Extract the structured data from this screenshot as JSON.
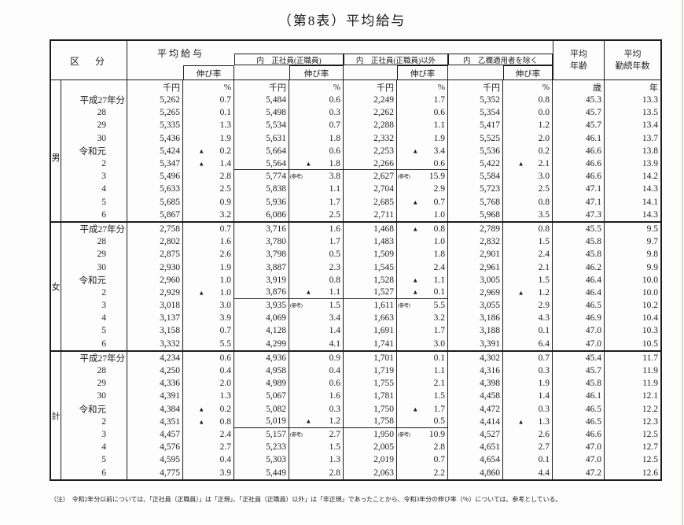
{
  "title": "（第8表）平均給与",
  "colors": {
    "ink": "#1c1c1c",
    "paper": "#fdfdfd",
    "scan_edge": "#d6d6d4"
  },
  "header": {
    "kubun": "区　分",
    "groups": [
      {
        "label": "平均給与",
        "rate": "伸び率"
      },
      {
        "label": "内　正社員(正職員)",
        "rate": "伸び率"
      },
      {
        "label": "内　正社員(正職員)以外",
        "rate": "伸び率"
      },
      {
        "label": "内　乙欄適用者を除く",
        "rate": "伸び率"
      }
    ],
    "avg_age": [
      "平均",
      "年齢"
    ],
    "avg_tenure": [
      "平均",
      "勤続年数"
    ],
    "units": [
      "千円",
      "%",
      "千円",
      "%",
      "千円",
      "%",
      "千円",
      "%",
      "歳",
      "年"
    ]
  },
  "sections": [
    {
      "group": "男",
      "name": "men",
      "rows": [
        {
          "year": "平成27年分",
          "cells": [
            "5,262",
            "0.7",
            "5,484",
            "0.6",
            "2,249",
            "1.7",
            "5,352",
            "0.8",
            "45.3",
            "13.3"
          ]
        },
        {
          "year": "28",
          "cells": [
            "5,265",
            "0.1",
            "5,498",
            "0.3",
            "2,262",
            "0.6",
            "5,354",
            "0.0",
            "45.7",
            "13.5"
          ]
        },
        {
          "year": "29",
          "cells": [
            "5,335",
            "1.3",
            "5,534",
            "0.7",
            "2,288",
            "1.1",
            "5,417",
            "1.2",
            "45.7",
            "13.4"
          ]
        },
        {
          "year": "30",
          "cells": [
            "5,436",
            "1.9",
            "5,631",
            "1.8",
            "2,332",
            "1.9",
            "5,525",
            "2.0",
            "46.1",
            "13.7"
          ]
        },
        {
          "year": "令和元",
          "cells": [
            "5,424",
            {
              "v": "0.2",
              "m": "▲"
            },
            "5,664",
            "0.6",
            "2,253",
            {
              "v": "3.4",
              "m": "▲"
            },
            "5,536",
            "0.2",
            "46.6",
            "13.8"
          ]
        },
        {
          "year": "2",
          "divider": true,
          "cells": [
            "5,347",
            {
              "v": "1.4",
              "m": "▲"
            },
            "5,564",
            {
              "v": "1.8",
              "m": "▲"
            },
            "2,266",
            "0.6",
            "5,422",
            {
              "v": "2.1",
              "m": "▲"
            },
            "46.6",
            "13.9"
          ]
        },
        {
          "year": "3",
          "cells": [
            "5,496",
            "2.8",
            "5,774",
            {
              "v": "3.8",
              "m": "(参考)"
            },
            "2,627",
            {
              "v": "15.9",
              "m": "(参考)"
            },
            "5,584",
            "3.0",
            "46.6",
            "14.2"
          ]
        },
        {
          "year": "4",
          "cells": [
            "5,633",
            "2.5",
            "5,838",
            "1.1",
            "2,704",
            "2.9",
            "5,723",
            "2.5",
            "47.1",
            "14.3"
          ]
        },
        {
          "year": "5",
          "cells": [
            "5,685",
            "0.9",
            "5,936",
            "1.7",
            "2,685",
            {
              "v": "0.7",
              "m": "▲"
            },
            "5,768",
            "0.8",
            "47.1",
            "14.1"
          ]
        },
        {
          "year": "6",
          "cells": [
            "5,867",
            "3.2",
            "6,086",
            "2.5",
            "2,711",
            "1.0",
            "5,968",
            "3.5",
            "47.3",
            "14.3"
          ]
        }
      ]
    },
    {
      "group": "女",
      "name": "women",
      "rows": [
        {
          "year": "平成27年分",
          "cells": [
            "2,758",
            "0.7",
            "3,716",
            "1.6",
            "1,468",
            {
              "v": "0.8",
              "m": "▲"
            },
            "2,789",
            "0.8",
            "45.5",
            "9.5"
          ]
        },
        {
          "year": "28",
          "cells": [
            "2,802",
            "1.6",
            "3,780",
            "1.7",
            "1,483",
            "1.0",
            "2,832",
            "1.5",
            "45.8",
            "9.7"
          ]
        },
        {
          "year": "29",
          "cells": [
            "2,875",
            "2.6",
            "3,798",
            "0.5",
            "1,509",
            "1.8",
            "2,901",
            "2.4",
            "45.8",
            "9.8"
          ]
        },
        {
          "year": "30",
          "cells": [
            "2,930",
            "1.9",
            "3,887",
            "2.3",
            "1,545",
            "2.4",
            "2,961",
            "2.1",
            "46.2",
            "9.9"
          ]
        },
        {
          "year": "令和元",
          "cells": [
            "2,960",
            "1.0",
            "3,919",
            "0.8",
            "1,528",
            {
              "v": "1.1",
              "m": "▲"
            },
            "3,005",
            "1.5",
            "46.4",
            "10.0"
          ]
        },
        {
          "year": "2",
          "divider": true,
          "cells": [
            "2,929",
            {
              "v": "1.0",
              "m": "▲"
            },
            "3,876",
            {
              "v": "1.1",
              "m": "▲"
            },
            "1,527",
            {
              "v": "0.1",
              "m": "▲"
            },
            "2,969",
            {
              "v": "1.2",
              "m": "▲"
            },
            "46.4",
            "10.0"
          ]
        },
        {
          "year": "3",
          "cells": [
            "3,018",
            "3.0",
            "3,935",
            {
              "v": "1.5",
              "m": "(参考)"
            },
            "1,611",
            {
              "v": "5.5",
              "m": "(参考)"
            },
            "3,055",
            "2.9",
            "46.5",
            "10.2"
          ]
        },
        {
          "year": "4",
          "cells": [
            "3,137",
            "3.9",
            "4,069",
            "3.4",
            "1,663",
            "3.2",
            "3,186",
            "4.3",
            "46.9",
            "10.4"
          ]
        },
        {
          "year": "5",
          "cells": [
            "3,158",
            "0.7",
            "4,128",
            "1.4",
            "1,691",
            "1.7",
            "3,188",
            "0.1",
            "47.0",
            "10.3"
          ]
        },
        {
          "year": "6",
          "cells": [
            "3,332",
            "5.5",
            "4,299",
            "4.1",
            "1,741",
            "3.0",
            "3,391",
            "6.4",
            "47.0",
            "10.5"
          ]
        }
      ]
    },
    {
      "group": "計",
      "name": "total",
      "rows": [
        {
          "year": "平成27年分",
          "cells": [
            "4,234",
            "0.6",
            "4,936",
            "0.9",
            "1,701",
            "0.1",
            "4,302",
            "0.7",
            "45.4",
            "11.7"
          ]
        },
        {
          "year": "28",
          "cells": [
            "4,250",
            "0.4",
            "4,958",
            "0.4",
            "1,719",
            "1.1",
            "4,316",
            "0.3",
            "45.7",
            "11.9"
          ]
        },
        {
          "year": "29",
          "cells": [
            "4,336",
            "2.0",
            "4,989",
            "0.6",
            "1,755",
            "2.1",
            "4,398",
            "1.9",
            "45.8",
            "11.9"
          ]
        },
        {
          "year": "30",
          "cells": [
            "4,391",
            "1.3",
            "5,067",
            "1.6",
            "1,781",
            "1.5",
            "4,458",
            "1.4",
            "46.1",
            "12.1"
          ]
        },
        {
          "year": "令和元",
          "cells": [
            "4,384",
            {
              "v": "0.2",
              "m": "▲"
            },
            "5,082",
            "0.3",
            "1,750",
            {
              "v": "1.7",
              "m": "▲"
            },
            "4,472",
            "0.3",
            "46.5",
            "12.2"
          ]
        },
        {
          "year": "2",
          "divider": true,
          "cells": [
            "4,351",
            {
              "v": "0.8",
              "m": "▲"
            },
            "5,019",
            {
              "v": "1.2",
              "m": "▲"
            },
            "1,758",
            "0.5",
            "4,414",
            {
              "v": "1.3",
              "m": "▲"
            },
            "46.5",
            "12.3"
          ]
        },
        {
          "year": "3",
          "cells": [
            "4,457",
            "2.4",
            "5,157",
            {
              "v": "2.7",
              "m": "(参考)"
            },
            "1,950",
            {
              "v": "10.9",
              "m": "(参考)"
            },
            "4,527",
            "2.6",
            "46.6",
            "12.5"
          ]
        },
        {
          "year": "4",
          "cells": [
            "4,576",
            "2.7",
            "5,233",
            "1.5",
            "2,005",
            "2.8",
            "4,651",
            "2.7",
            "47.0",
            "12.7"
          ]
        },
        {
          "year": "5",
          "cells": [
            "4,595",
            "0.4",
            "5,303",
            "1.3",
            "2,019",
            "0.7",
            "4,654",
            "0.1",
            "47.0",
            "12.5"
          ]
        },
        {
          "year": "6",
          "cells": [
            "4,775",
            "3.9",
            "5,449",
            "2.8",
            "2,063",
            "2.2",
            "4,860",
            "4.4",
            "47.2",
            "12.6"
          ]
        }
      ]
    }
  ],
  "note": "（注）　令和2年分以前については、「正社員（正職員）」は「正規」、「正社員（正職員）以外」は「非正規」であったことから、令和3年分の伸び率（％）については、参考としている。"
}
